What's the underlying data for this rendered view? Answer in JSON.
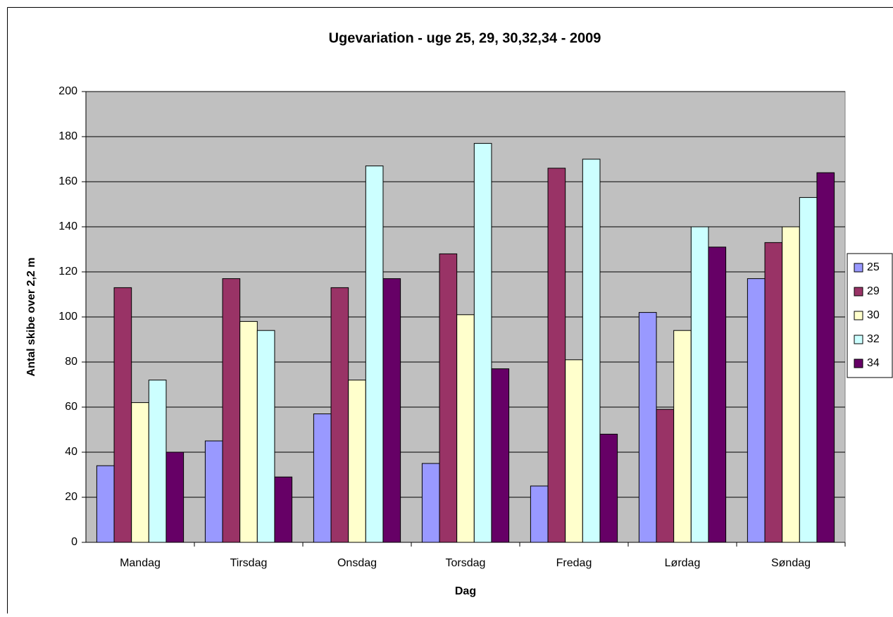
{
  "chart_data": {
    "type": "bar",
    "title": "Ugevariation - uge 25, 29, 30,32,34 - 2009",
    "x_label": "Dag",
    "y_label": "Antal skibe over 2,2 m",
    "categories": [
      "Mandag",
      "Tirsdag",
      "Onsdag",
      "Torsdag",
      "Fredag",
      "Lørdag",
      "Søndag"
    ],
    "series": [
      {
        "name": "25",
        "color": "#9999ff",
        "values": [
          34,
          45,
          57,
          35,
          25,
          102,
          117
        ]
      },
      {
        "name": "29",
        "color": "#993366",
        "values": [
          113,
          117,
          113,
          128,
          166,
          59,
          133
        ]
      },
      {
        "name": "30",
        "color": "#ffffcc",
        "values": [
          62,
          98,
          72,
          101,
          81,
          94,
          140
        ]
      },
      {
        "name": "32",
        "color": "#ccffff",
        "values": [
          72,
          94,
          167,
          177,
          170,
          140,
          153
        ]
      },
      {
        "name": "34",
        "color": "#660066",
        "values": [
          40,
          29,
          117,
          77,
          48,
          131,
          164
        ]
      }
    ],
    "ylim": [
      0,
      200
    ],
    "yticks": [
      0,
      20,
      40,
      60,
      80,
      100,
      120,
      140,
      160,
      180,
      200
    ],
    "grid": true,
    "plot_background": "#c0c0c0",
    "legend": "right"
  }
}
